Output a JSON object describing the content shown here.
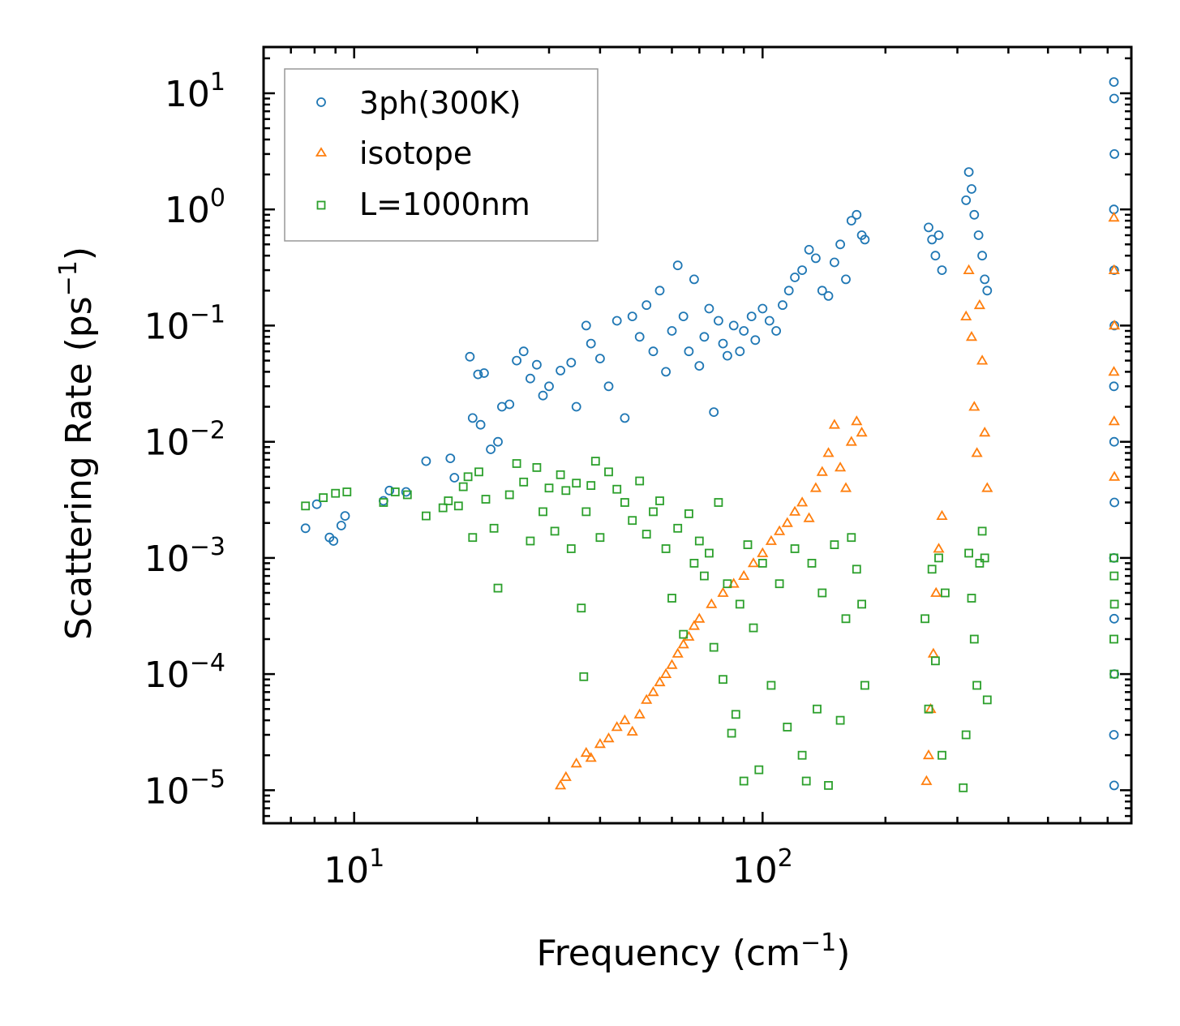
{
  "chart_data": {
    "type": "scatter",
    "xscale": "log",
    "yscale": "log",
    "xlim": [
      6.0,
      800.0
    ],
    "ylim": [
      5.2e-06,
      25.0
    ],
    "xlabel": {
      "main": "Frequency (cm",
      "sup": "−1",
      "tail": ")"
    },
    "ylabel": {
      "main": "Scattering Rate (ps",
      "sup": "−1",
      "tail": ")"
    },
    "x_ticks": [
      {
        "value": 10,
        "base": "10",
        "exp": "1"
      },
      {
        "value": 100,
        "base": "10",
        "exp": "2"
      }
    ],
    "y_ticks": [
      {
        "value": 10,
        "base": "10",
        "exp": "1"
      },
      {
        "value": 1,
        "base": "10",
        "exp": "0"
      },
      {
        "value": 0.1,
        "base": "10",
        "exp": "−1"
      },
      {
        "value": 0.01,
        "base": "10",
        "exp": "−2"
      },
      {
        "value": 0.001,
        "base": "10",
        "exp": "−3"
      },
      {
        "value": 0.0001,
        "base": "10",
        "exp": "−4"
      },
      {
        "value": 1e-05,
        "base": "10",
        "exp": "−5"
      }
    ],
    "legend_position": "top-left",
    "series": [
      {
        "name": "3ph(300K)",
        "marker": "circle",
        "color": "#1f77b4",
        "points": [
          [
            7.6,
            0.0018
          ],
          [
            8.1,
            0.0029
          ],
          [
            8.7,
            0.0015
          ],
          [
            8.9,
            0.0014
          ],
          [
            9.5,
            0.0023
          ],
          [
            9.3,
            0.0019
          ],
          [
            11.8,
            0.0031
          ],
          [
            12.2,
            0.0038
          ],
          [
            13.4,
            0.0037
          ],
          [
            15.0,
            0.0068
          ],
          [
            17.2,
            0.0072
          ],
          [
            17.6,
            0.0049
          ],
          [
            19.2,
            0.054
          ],
          [
            20.1,
            0.038
          ],
          [
            20.8,
            0.039
          ],
          [
            19.5,
            0.016
          ],
          [
            20.4,
            0.014
          ],
          [
            21.6,
            0.0086
          ],
          [
            22.5,
            0.01
          ],
          [
            23.0,
            0.02
          ],
          [
            24.0,
            0.021
          ],
          [
            25.0,
            0.05
          ],
          [
            26.0,
            0.06
          ],
          [
            27.0,
            0.035
          ],
          [
            28.0,
            0.046
          ],
          [
            29.0,
            0.025
          ],
          [
            30.0,
            0.03
          ],
          [
            32.0,
            0.041
          ],
          [
            34.0,
            0.048
          ],
          [
            35.0,
            0.02
          ],
          [
            37.0,
            0.1
          ],
          [
            38.0,
            0.07
          ],
          [
            40.0,
            0.052
          ],
          [
            42.0,
            0.03
          ],
          [
            44.0,
            0.11
          ],
          [
            46.0,
            0.016
          ],
          [
            48.0,
            0.12
          ],
          [
            50.0,
            0.08
          ],
          [
            52.0,
            0.15
          ],
          [
            54.0,
            0.06
          ],
          [
            56.0,
            0.2
          ],
          [
            58.0,
            0.04
          ],
          [
            60.0,
            0.09
          ],
          [
            62.0,
            0.33
          ],
          [
            64.0,
            0.12
          ],
          [
            66.0,
            0.06
          ],
          [
            68.0,
            0.25
          ],
          [
            70.0,
            0.045
          ],
          [
            72.0,
            0.08
          ],
          [
            74.0,
            0.14
          ],
          [
            76.0,
            0.018
          ],
          [
            78.0,
            0.11
          ],
          [
            80.0,
            0.07
          ],
          [
            82.0,
            0.055
          ],
          [
            85.0,
            0.1
          ],
          [
            88.0,
            0.06
          ],
          [
            90.0,
            0.09
          ],
          [
            94.0,
            0.12
          ],
          [
            96.0,
            0.075
          ],
          [
            100.0,
            0.14
          ],
          [
            104.0,
            0.11
          ],
          [
            108.0,
            0.09
          ],
          [
            112.0,
            0.15
          ],
          [
            116.0,
            0.2
          ],
          [
            120.0,
            0.26
          ],
          [
            125.0,
            0.3
          ],
          [
            130.0,
            0.45
          ],
          [
            135.0,
            0.38
          ],
          [
            140.0,
            0.2
          ],
          [
            145.0,
            0.18
          ],
          [
            150.0,
            0.35
          ],
          [
            155.0,
            0.5
          ],
          [
            160.0,
            0.25
          ],
          [
            165.0,
            0.8
          ],
          [
            170.0,
            0.9
          ],
          [
            175.0,
            0.6
          ],
          [
            178.0,
            0.55
          ],
          [
            255.0,
            0.7
          ],
          [
            260.0,
            0.55
          ],
          [
            265.0,
            0.4
          ],
          [
            270.0,
            0.6
          ],
          [
            275.0,
            0.3
          ],
          [
            315.0,
            1.2
          ],
          [
            320.0,
            2.1
          ],
          [
            325.0,
            1.5
          ],
          [
            330.0,
            0.9
          ],
          [
            338.0,
            0.6
          ],
          [
            345.0,
            0.4
          ],
          [
            350.0,
            0.25
          ],
          [
            355.0,
            0.2
          ],
          [
            725.0,
            12.5
          ],
          [
            726.0,
            9.0
          ],
          [
            727.0,
            3.0
          ],
          [
            725.0,
            1.0
          ],
          [
            726.0,
            0.3
          ],
          [
            727.0,
            0.1
          ],
          [
            725.0,
            0.03
          ],
          [
            726.0,
            0.01
          ],
          [
            727.0,
            0.003
          ],
          [
            725.0,
            0.001
          ],
          [
            726.0,
            0.0003
          ],
          [
            727.0,
            0.0001
          ],
          [
            725.0,
            3e-05
          ],
          [
            726.0,
            1.1e-05
          ]
        ]
      },
      {
        "name": "isotope",
        "marker": "triangle",
        "color": "#ff7f0e",
        "points": [
          [
            32.0,
            1.1e-05
          ],
          [
            33.0,
            1.3e-05
          ],
          [
            35.0,
            1.7e-05
          ],
          [
            37.0,
            2.1e-05
          ],
          [
            38.0,
            1.9e-05
          ],
          [
            40.0,
            2.5e-05
          ],
          [
            42.0,
            2.8e-05
          ],
          [
            44.0,
            3.5e-05
          ],
          [
            46.0,
            4e-05
          ],
          [
            48.0,
            3.2e-05
          ],
          [
            50.0,
            4.5e-05
          ],
          [
            52.0,
            6e-05
          ],
          [
            54.0,
            7e-05
          ],
          [
            56.0,
            8.5e-05
          ],
          [
            58.0,
            0.0001
          ],
          [
            60.0,
            0.00012
          ],
          [
            62.0,
            0.00015
          ],
          [
            64.0,
            0.00018
          ],
          [
            66.0,
            0.00021
          ],
          [
            68.0,
            0.00026
          ],
          [
            70.0,
            0.0003
          ],
          [
            75.0,
            0.0004
          ],
          [
            80.0,
            0.0005
          ],
          [
            85.0,
            0.0006
          ],
          [
            90.0,
            0.0007
          ],
          [
            95.0,
            0.0009
          ],
          [
            100.0,
            0.0011
          ],
          [
            105.0,
            0.0014
          ],
          [
            110.0,
            0.0017
          ],
          [
            115.0,
            0.002
          ],
          [
            120.0,
            0.0025
          ],
          [
            125.0,
            0.003
          ],
          [
            130.0,
            0.0022
          ],
          [
            135.0,
            0.004
          ],
          [
            140.0,
            0.0055
          ],
          [
            145.0,
            0.008
          ],
          [
            150.0,
            0.014
          ],
          [
            155.0,
            0.006
          ],
          [
            160.0,
            0.004
          ],
          [
            165.0,
            0.01
          ],
          [
            170.0,
            0.015
          ],
          [
            175.0,
            0.012
          ],
          [
            252.0,
            1.2e-05
          ],
          [
            255.0,
            2e-05
          ],
          [
            258.0,
            5e-05
          ],
          [
            262.0,
            0.00015
          ],
          [
            266.0,
            0.0005
          ],
          [
            270.0,
            0.0012
          ],
          [
            275.0,
            0.0023
          ],
          [
            315.0,
            0.12
          ],
          [
            320.0,
            0.3
          ],
          [
            325.0,
            0.08
          ],
          [
            330.0,
            0.02
          ],
          [
            335.0,
            0.008
          ],
          [
            340.0,
            0.15
          ],
          [
            345.0,
            0.05
          ],
          [
            350.0,
            0.012
          ],
          [
            355.0,
            0.004
          ],
          [
            725.0,
            0.85
          ],
          [
            726.0,
            0.3
          ],
          [
            727.0,
            0.1
          ],
          [
            725.0,
            0.04
          ],
          [
            726.0,
            0.015
          ],
          [
            727.0,
            0.005
          ]
        ]
      },
      {
        "name": "L=1000nm",
        "marker": "square",
        "color": "#2ca02c",
        "points": [
          [
            7.6,
            0.0028
          ],
          [
            8.4,
            0.0033
          ],
          [
            9.0,
            0.0036
          ],
          [
            9.6,
            0.0037
          ],
          [
            11.8,
            0.003
          ],
          [
            12.6,
            0.0037
          ],
          [
            13.5,
            0.0035
          ],
          [
            15.0,
            0.0023
          ],
          [
            16.5,
            0.0027
          ],
          [
            17.0,
            0.0031
          ],
          [
            18.0,
            0.0028
          ],
          [
            18.5,
            0.0041
          ],
          [
            19.0,
            0.005
          ],
          [
            19.5,
            0.0015
          ],
          [
            20.2,
            0.0055
          ],
          [
            21.0,
            0.0032
          ],
          [
            22.0,
            0.0018
          ],
          [
            22.5,
            0.00055
          ],
          [
            24.0,
            0.0035
          ],
          [
            25.0,
            0.0065
          ],
          [
            26.0,
            0.0045
          ],
          [
            27.0,
            0.0014
          ],
          [
            28.0,
            0.006
          ],
          [
            29.0,
            0.0025
          ],
          [
            30.0,
            0.004
          ],
          [
            31.0,
            0.0017
          ],
          [
            32.0,
            0.0052
          ],
          [
            33.0,
            0.0038
          ],
          [
            34.0,
            0.0012
          ],
          [
            35.0,
            0.0044
          ],
          [
            36.0,
            0.00037
          ],
          [
            36.5,
            9.5e-05
          ],
          [
            37.0,
            0.0025
          ],
          [
            38.0,
            0.0042
          ],
          [
            39.0,
            0.0068
          ],
          [
            40.0,
            0.0015
          ],
          [
            42.0,
            0.0055
          ],
          [
            44.0,
            0.0039
          ],
          [
            46.0,
            0.003
          ],
          [
            48.0,
            0.0021
          ],
          [
            50.0,
            0.0046
          ],
          [
            52.0,
            0.0016
          ],
          [
            54.0,
            0.0025
          ],
          [
            56.0,
            0.0031
          ],
          [
            58.0,
            0.0012
          ],
          [
            60.0,
            0.00045
          ],
          [
            62.0,
            0.0018
          ],
          [
            64.0,
            0.00022
          ],
          [
            66.0,
            0.0024
          ],
          [
            68.0,
            0.0009
          ],
          [
            70.0,
            0.0014
          ],
          [
            72.0,
            0.0007
          ],
          [
            74.0,
            0.0011
          ],
          [
            76.0,
            0.00017
          ],
          [
            78.0,
            0.003
          ],
          [
            80.0,
            9e-05
          ],
          [
            82.0,
            0.0006
          ],
          [
            84.0,
            3.1e-05
          ],
          [
            86.0,
            4.5e-05
          ],
          [
            88.0,
            0.0004
          ],
          [
            90.0,
            1.2e-05
          ],
          [
            92.0,
            0.0013
          ],
          [
            95.0,
            0.00025
          ],
          [
            98.0,
            1.5e-05
          ],
          [
            100.0,
            0.0009
          ],
          [
            105.0,
            8e-05
          ],
          [
            110.0,
            0.0006
          ],
          [
            115.0,
            3.5e-05
          ],
          [
            120.0,
            0.0012
          ],
          [
            125.0,
            2e-05
          ],
          [
            128.0,
            1.2e-05
          ],
          [
            132.0,
            0.0009
          ],
          [
            136.0,
            5e-05
          ],
          [
            140.0,
            0.0005
          ],
          [
            145.0,
            1.1e-05
          ],
          [
            150.0,
            0.0013
          ],
          [
            155.0,
            4e-05
          ],
          [
            160.0,
            0.0003
          ],
          [
            165.0,
            0.0015
          ],
          [
            170.0,
            0.0008
          ],
          [
            175.0,
            0.0004
          ],
          [
            178.0,
            8e-05
          ],
          [
            250.0,
            0.0003
          ],
          [
            255.0,
            5e-05
          ],
          [
            260.0,
            0.0008
          ],
          [
            265.0,
            0.00013
          ],
          [
            270.0,
            0.001
          ],
          [
            275.0,
            2e-05
          ],
          [
            280.0,
            0.0005
          ],
          [
            310.0,
            1.05e-05
          ],
          [
            315.0,
            3e-05
          ],
          [
            320.0,
            0.0011
          ],
          [
            325.0,
            0.00045
          ],
          [
            330.0,
            0.0002
          ],
          [
            335.0,
            8e-05
          ],
          [
            340.0,
            0.0009
          ],
          [
            345.0,
            0.0017
          ],
          [
            350.0,
            0.001
          ],
          [
            355.0,
            6e-05
          ],
          [
            725.0,
            0.001
          ],
          [
            726.0,
            0.0007
          ],
          [
            727.0,
            0.0004
          ],
          [
            725.0,
            0.0002
          ],
          [
            726.0,
            0.0001
          ]
        ]
      }
    ]
  }
}
